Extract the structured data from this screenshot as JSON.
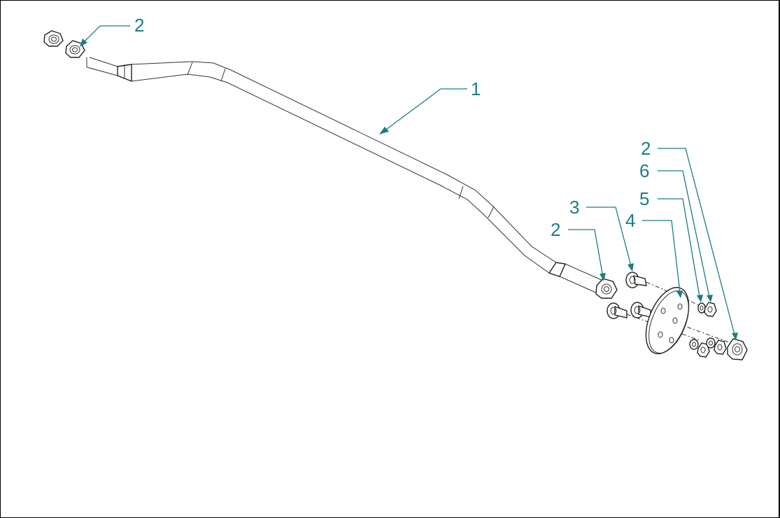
{
  "callouts": {
    "nut_left": "2",
    "tube": "1",
    "nut_right_a": "2",
    "bolt": "3",
    "plate": "4",
    "washer": "5",
    "locknut": "6",
    "nut_right_b": "2"
  },
  "colors": {
    "callout": "#1a7d86",
    "line": "#222222",
    "frame": "#000000"
  }
}
